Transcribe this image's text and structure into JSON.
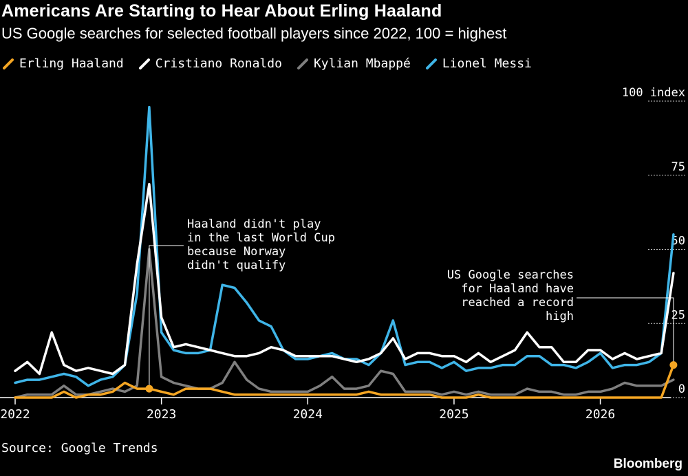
{
  "header": {
    "title": "Americans Are Starting to Hear About Erling Haaland",
    "subtitle": "US Google searches for selected football players since 2022, 100 = highest"
  },
  "footer": {
    "source": "Source: Google Trends",
    "brand": "Bloomberg"
  },
  "colors": {
    "background": "#000000",
    "haaland": "#f5a623",
    "ronaldo": "#ffffff",
    "mbappe": "#7f7f7f",
    "messi": "#3fb5e8"
  },
  "chart_data": {
    "type": "line",
    "title": "Americans Are Starting to Hear About Erling Haaland",
    "subtitle": "US Google searches for selected football players since 2022, 100 = highest",
    "unit_label": "100 index",
    "ylim": [
      0,
      100
    ],
    "yticks": [
      {
        "value": 0,
        "label": "0"
      },
      {
        "value": 25,
        "label": "25"
      },
      {
        "value": 50,
        "label": "50"
      },
      {
        "value": 75,
        "label": "75"
      },
      {
        "value": 100,
        "label": "100 index"
      }
    ],
    "xticks": [
      {
        "value": 0,
        "label": "2022"
      },
      {
        "value": 12,
        "label": "2023"
      },
      {
        "value": 24,
        "label": "2024"
      },
      {
        "value": 36,
        "label": "2025"
      },
      {
        "value": 48,
        "label": "2026"
      }
    ],
    "xlim": [
      0,
      53
    ],
    "x_unit": "months since Jan 2022",
    "grid": "horizontal dashed lines on right side",
    "legend_position": "top-left",
    "series": [
      {
        "name": "Lionel Messi",
        "color": "#3fb5e8",
        "values": [
          5,
          6,
          6,
          7,
          8,
          7,
          4,
          6,
          7,
          11,
          35,
          98,
          22,
          16,
          15,
          15,
          16,
          38,
          37,
          32,
          26,
          24,
          16,
          13,
          13,
          14,
          15,
          13,
          13,
          11,
          15,
          26,
          11,
          12,
          12,
          10,
          12,
          9,
          10,
          10,
          11,
          11,
          14,
          14,
          11,
          11,
          10,
          12,
          15,
          10,
          11,
          11,
          12,
          15,
          55
        ]
      },
      {
        "name": "Cristiano Ronaldo",
        "color": "#ffffff",
        "values": [
          9,
          12,
          8,
          22,
          11,
          9,
          10,
          9,
          8,
          11,
          45,
          72,
          27,
          17,
          18,
          17,
          16,
          15,
          14,
          14,
          15,
          17,
          16,
          14,
          14,
          14,
          14,
          13,
          12,
          13,
          15,
          20,
          13,
          15,
          15,
          14,
          14,
          12,
          15,
          12,
          14,
          16,
          22,
          17,
          17,
          12,
          12,
          16,
          16,
          13,
          15,
          13,
          14,
          15,
          42
        ]
      },
      {
        "name": "Kylian Mbappé",
        "color": "#7f7f7f",
        "values": [
          0,
          1,
          1,
          1,
          4,
          1,
          1,
          2,
          3,
          2,
          4,
          50,
          7,
          5,
          4,
          3,
          3,
          5,
          12,
          6,
          3,
          2,
          2,
          2,
          2,
          4,
          7,
          3,
          3,
          4,
          9,
          8,
          2,
          2,
          2,
          1,
          2,
          1,
          2,
          1,
          1,
          1,
          3,
          2,
          2,
          1,
          1,
          2,
          2,
          3,
          5,
          4,
          4,
          4,
          6
        ]
      },
      {
        "name": "Erling Haaland",
        "color": "#f5a623",
        "values": [
          0,
          0,
          0,
          0,
          2,
          0,
          1,
          1,
          2,
          5,
          3,
          3,
          2,
          1,
          3,
          3,
          3,
          2,
          1,
          1,
          1,
          1,
          1,
          1,
          1,
          1,
          1,
          1,
          1,
          2,
          1,
          1,
          1,
          1,
          1,
          0,
          0,
          0,
          1,
          0,
          0,
          0,
          0,
          0,
          0,
          0,
          0,
          0,
          0,
          0,
          0,
          0,
          0,
          0,
          11
        ]
      }
    ],
    "annotations": [
      {
        "x": 11,
        "y": 3,
        "series": "Erling Haaland",
        "lines": [
          "Haaland didn't play",
          "in the last World Cup",
          "because Norway",
          "didn't qualify"
        ]
      },
      {
        "x": 54,
        "y": 11,
        "series": "Erling Haaland",
        "lines": [
          "US Google searches",
          "for Haaland have",
          "reached a record",
          "high"
        ]
      }
    ]
  }
}
